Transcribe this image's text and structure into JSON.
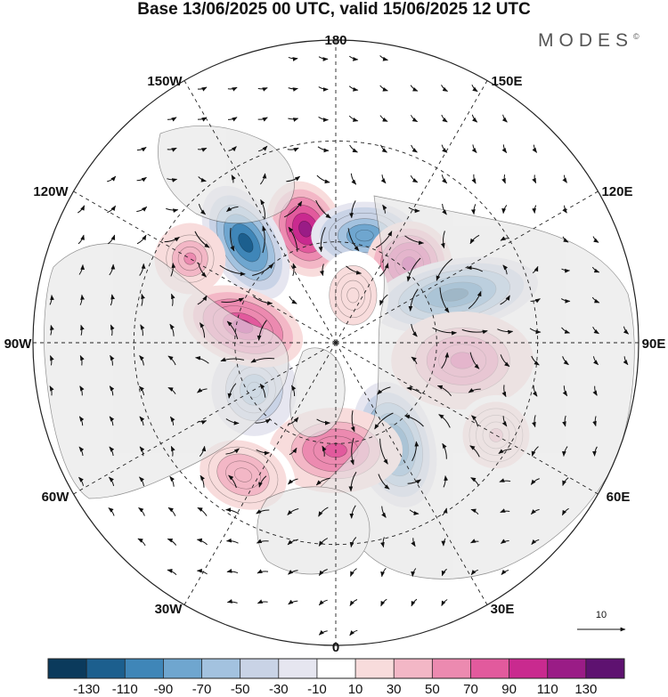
{
  "title": "Base 13/06/2025 00 UTC, valid 15/06/2025 12 UTC",
  "brand": "MODES",
  "brand_mark": "©",
  "longitude_labels": {
    "top": "180",
    "bottom": "0",
    "left": "90W",
    "right": "90E",
    "upper_left_1": "150W",
    "upper_left_2": "120W",
    "upper_right_1": "150E",
    "upper_right_2": "120E",
    "lower_left_1": "60W",
    "lower_left_2": "30W",
    "lower_right_1": "60E",
    "lower_right_2": "30E"
  },
  "vector_reference": {
    "value": "10"
  },
  "colorbar": {
    "colors": [
      "#0b3a5c",
      "#1c5f8e",
      "#3f86b8",
      "#6fa6cf",
      "#a3c2df",
      "#c9d3e6",
      "#e6e6f0",
      "#ffffff",
      "#f8dcdc",
      "#f3b7c6",
      "#ec8ab0",
      "#e25a9d",
      "#c92a8f",
      "#9a1c86",
      "#5e1270"
    ],
    "tick_labels": [
      "-130",
      "-110",
      "-90",
      "-70",
      "-50",
      "-30",
      "-10",
      "10",
      "30",
      "50",
      "70",
      "90",
      "110",
      "130"
    ]
  },
  "anomalies": [
    {
      "lon": -165,
      "lat": 55,
      "value": 110,
      "rx": 42,
      "ry": 55,
      "rot": -20
    },
    {
      "lon": -138,
      "lat": 50,
      "value": -120,
      "rx": 40,
      "ry": 70,
      "rot": -30
    },
    {
      "lon": 165,
      "lat": 57,
      "value": -85,
      "rx": 60,
      "ry": 38,
      "rot": 0
    },
    {
      "lon": 137,
      "lat": 58,
      "value": 105,
      "rx": 48,
      "ry": 48,
      "rot": 0
    },
    {
      "lon": 112,
      "lat": 52,
      "value": -125,
      "rx": 95,
      "ry": 40,
      "rot": -10
    },
    {
      "lon": 82,
      "lat": 52,
      "value": 75,
      "rx": 80,
      "ry": 55,
      "rot": 0
    },
    {
      "lon": 30,
      "lat": 55,
      "value": -110,
      "rx": 45,
      "ry": 72,
      "rot": -15
    },
    {
      "lon": 0,
      "lat": 58,
      "value": 75,
      "rx": 75,
      "ry": 48,
      "rot": 0
    },
    {
      "lon": -35,
      "lat": 42,
      "value": 45,
      "rx": 60,
      "ry": 45,
      "rot": 20
    },
    {
      "lon": -60,
      "lat": 62,
      "value": -70,
      "rx": 48,
      "ry": 52,
      "rot": 0
    },
    {
      "lon": -100,
      "lat": 62,
      "value": 100,
      "rx": 70,
      "ry": 42,
      "rot": 20
    },
    {
      "lon": -120,
      "lat": 40,
      "value": 50,
      "rx": 40,
      "ry": 40,
      "rot": 0
    },
    {
      "lon": 160,
      "lat": 75,
      "value": 20,
      "rx": 40,
      "ry": 50,
      "rot": 0
    },
    {
      "lon": 60,
      "lat": 35,
      "value": 30,
      "rx": 45,
      "ry": 45,
      "rot": 0
    }
  ]
}
